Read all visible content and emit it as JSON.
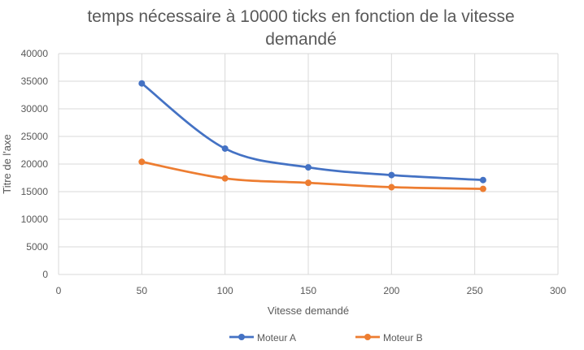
{
  "chart_data": {
    "type": "scatter",
    "title_lines": [
      "temps nécessaire à 10000 ticks en fonction de la vitesse",
      "demandé"
    ],
    "xlabel": "Vitesse demandé",
    "ylabel": "Titre de l'axe",
    "xlim": [
      0,
      300
    ],
    "ylim": [
      0,
      40000
    ],
    "x_ticks": [
      0,
      50,
      100,
      150,
      200,
      250,
      300
    ],
    "y_ticks": [
      0,
      5000,
      10000,
      15000,
      20000,
      25000,
      30000,
      35000,
      40000
    ],
    "grid": true,
    "legend_position": "bottom",
    "smooth_lines": true,
    "series": [
      {
        "name": "Moteur  A",
        "color": "#4472C4",
        "x": [
          50,
          100,
          150,
          200,
          255
        ],
        "y": [
          34600,
          22800,
          19400,
          18000,
          17100
        ]
      },
      {
        "name": "Moteur B",
        "color": "#ED7D31",
        "x": [
          50,
          100,
          150,
          200,
          255
        ],
        "y": [
          20400,
          17400,
          16600,
          15800,
          15500
        ]
      }
    ]
  }
}
